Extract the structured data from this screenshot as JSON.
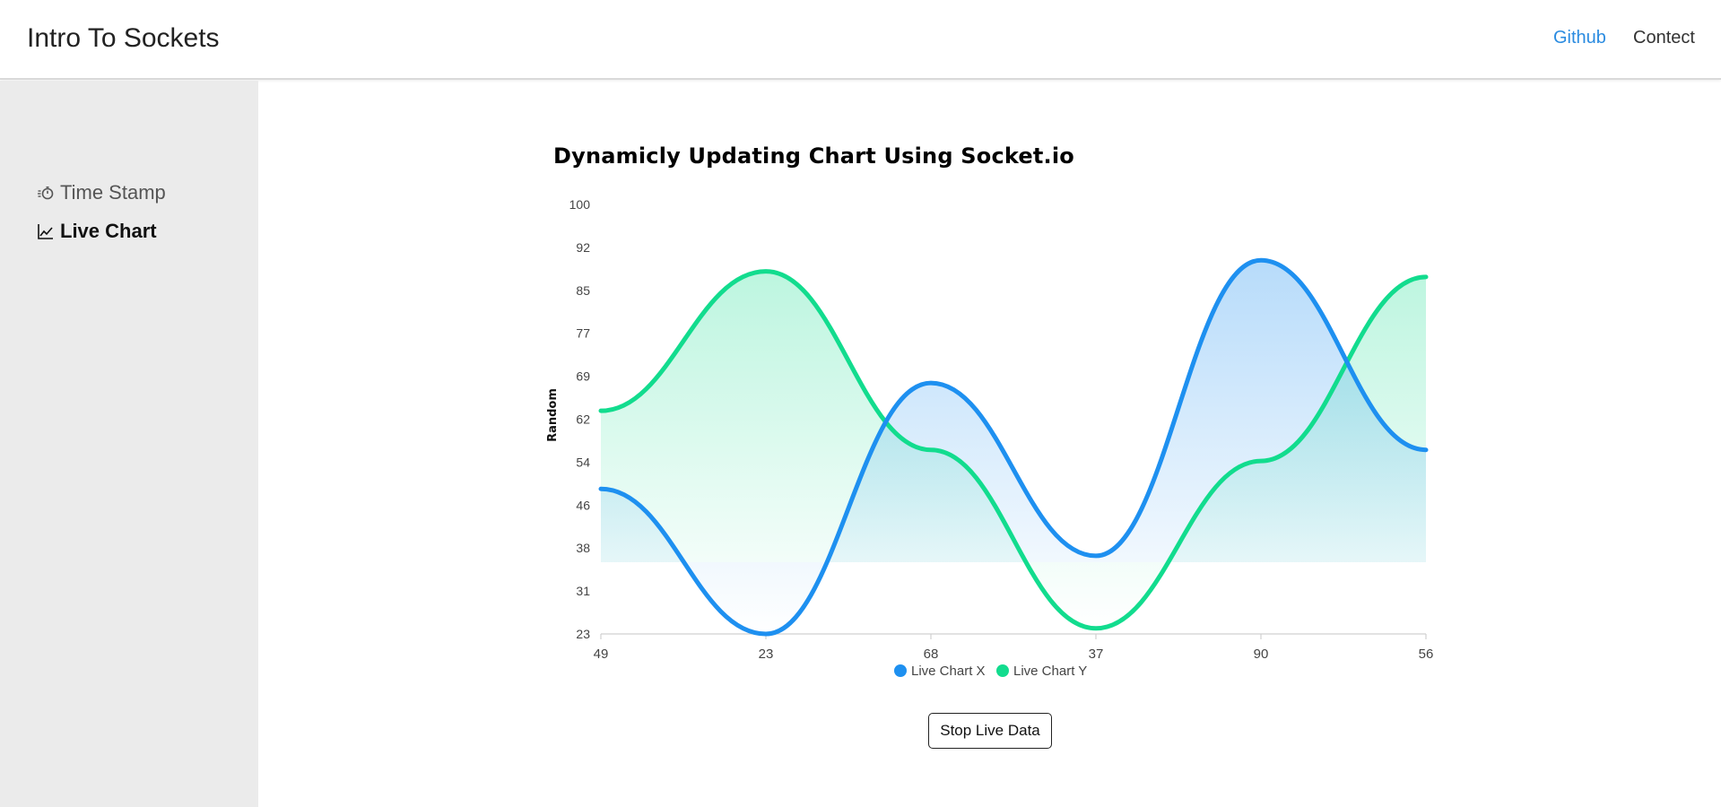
{
  "app": {
    "title": "Intro To Sockets"
  },
  "header": {
    "links": [
      {
        "label": "Github",
        "color": "#2a8be0"
      },
      {
        "label": "Contect",
        "color": "#333333"
      }
    ]
  },
  "sidebar": {
    "items": [
      {
        "label": "Time Stamp",
        "icon": "stopwatch-icon",
        "active": false
      },
      {
        "label": "Live Chart",
        "icon": "line-chart-icon",
        "active": true
      }
    ]
  },
  "main": {
    "stop_button_label": "Stop Live Data"
  },
  "chart_data": {
    "type": "area",
    "title": "Dynamicly Updating Chart Using Socket.io",
    "xlabel": "",
    "ylabel": "Random",
    "x": [
      "49",
      "23",
      "68",
      "37",
      "90",
      "56"
    ],
    "y_ticks": [
      "100",
      "92",
      "85",
      "77",
      "69",
      "62",
      "54",
      "46",
      "38",
      "31",
      "23"
    ],
    "ylim": [
      23,
      100
    ],
    "grid": false,
    "legend_position": "bottom",
    "series": [
      {
        "name": "Live Chart X",
        "color": "#1e90f0",
        "values": [
          49,
          23,
          68,
          37,
          90,
          56
        ]
      },
      {
        "name": "Live Chart Y",
        "color": "#12dc8e",
        "values": [
          63,
          88,
          56,
          24,
          54,
          87
        ]
      }
    ]
  }
}
